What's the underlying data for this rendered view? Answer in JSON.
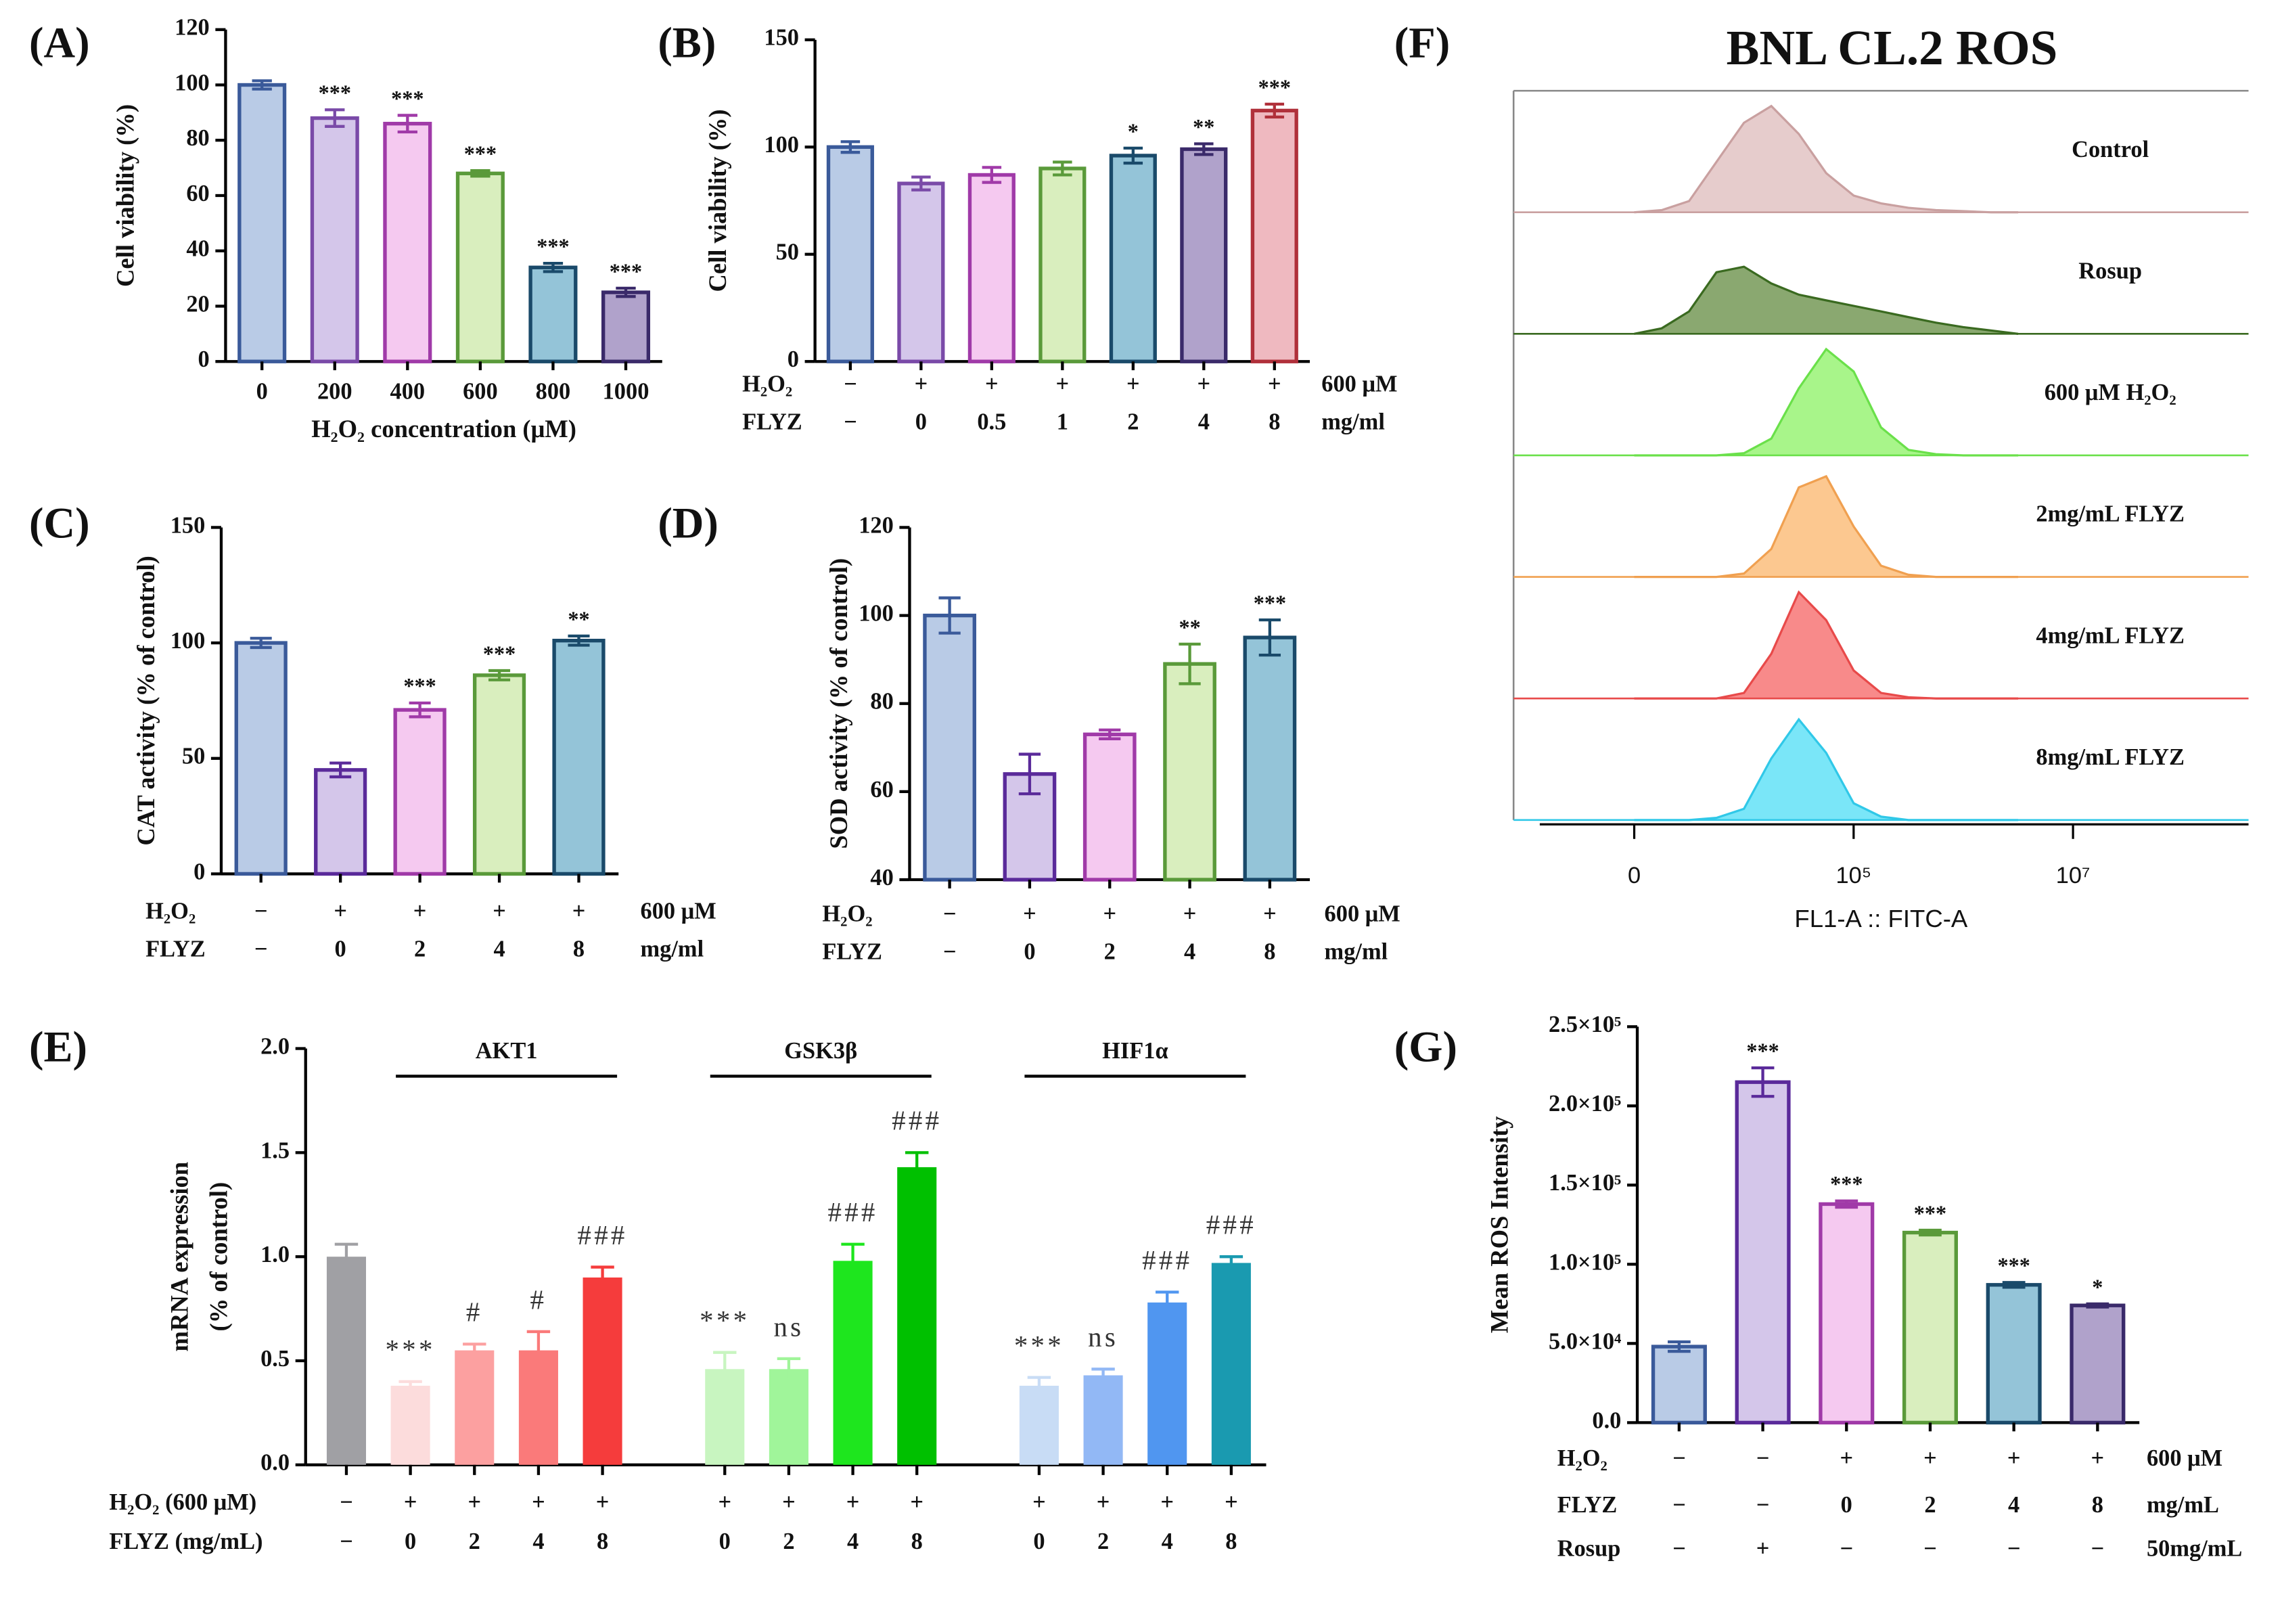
{
  "chart_data": [
    {
      "type": "bar",
      "panel": "(A)",
      "ylabel": "Cell viability (%)",
      "xlabel": "H₂O₂ concentration (μM)",
      "categories": [
        "0",
        "200",
        "400",
        "600",
        "800",
        "1000"
      ],
      "values": [
        100,
        88,
        86,
        68,
        34,
        25
      ],
      "errors": [
        1.5,
        3,
        3,
        1,
        1.5,
        1.5
      ],
      "significance": [
        null,
        "***",
        "***",
        "***",
        "***",
        "***"
      ],
      "colors": [
        "#b9cbe6",
        "#d4c6ea",
        "#f5c9f0",
        "#d9eebe",
        "#94c4d8",
        "#b0a2cb"
      ],
      "edge_colors": [
        "#3a5a9a",
        "#7a4aa8",
        "#a03aa8",
        "#5a9a3a",
        "#1a4a6a",
        "#3a2a6a"
      ],
      "ylim": [
        0,
        120
      ],
      "yticks": [
        0,
        20,
        40,
        60,
        80,
        100,
        120
      ]
    },
    {
      "type": "bar",
      "panel": "(B)",
      "ylabel": "Cell viability (%)",
      "values": [
        100,
        83,
        87,
        90,
        96,
        99,
        117
      ],
      "errors": [
        2.5,
        3,
        3.5,
        3,
        3.5,
        2.5,
        3
      ],
      "significance": [
        null,
        null,
        null,
        null,
        "*",
        "**",
        "***"
      ],
      "colors": [
        "#b9cbe6",
        "#d4c6ea",
        "#f5c9f0",
        "#d9eebe",
        "#94c4d8",
        "#b0a2cb",
        "#efb9c0"
      ],
      "edge_colors": [
        "#3a5a9a",
        "#7a4aa8",
        "#a03aa8",
        "#5a9a3a",
        "#1a4a6a",
        "#3a2a6a",
        "#b0303a"
      ],
      "ylim": [
        0,
        150
      ],
      "yticks": [
        0,
        50,
        100,
        150
      ],
      "conditions": [
        {
          "label": "H₂O₂",
          "values": [
            "−",
            "+",
            "+",
            "+",
            "+",
            "+",
            "+"
          ],
          "unit": "600 μM"
        },
        {
          "label": "FLYZ",
          "values": [
            "−",
            "0",
            "0.5",
            "1",
            "2",
            "4",
            "8"
          ],
          "unit": "mg/ml"
        }
      ]
    },
    {
      "type": "bar",
      "panel": "(C)",
      "ylabel": "CAT activity (% of control)",
      "values": [
        100,
        45,
        71,
        86,
        101
      ],
      "errors": [
        2,
        3,
        3,
        2,
        2
      ],
      "significance": [
        null,
        null,
        "***",
        "***",
        "**"
      ],
      "colors": [
        "#b9cbe6",
        "#d4c6ea",
        "#f5c9f0",
        "#d9eebe",
        "#94c4d8"
      ],
      "edge_colors": [
        "#3a5a9a",
        "#5a2a9a",
        "#a03aa8",
        "#5a9a3a",
        "#1a4a6a"
      ],
      "ylim": [
        0,
        150
      ],
      "yticks": [
        0,
        50,
        100,
        150
      ],
      "conditions": [
        {
          "label": "H₂O₂",
          "values": [
            "−",
            "+",
            "+",
            "+",
            "+"
          ],
          "unit": "600 μM"
        },
        {
          "label": "FLYZ",
          "values": [
            "−",
            "0",
            "2",
            "4",
            "8"
          ],
          "unit": "mg/ml"
        }
      ]
    },
    {
      "type": "bar",
      "panel": "(D)",
      "ylabel": "SOD activity (% of control)",
      "values": [
        100,
        64,
        73,
        89,
        95
      ],
      "errors": [
        4,
        4.5,
        1,
        4.5,
        4
      ],
      "significance": [
        null,
        null,
        null,
        "**",
        "***"
      ],
      "colors": [
        "#b9cbe6",
        "#d4c6ea",
        "#f5c9f0",
        "#d9eebe",
        "#94c4d8"
      ],
      "edge_colors": [
        "#3a5a9a",
        "#5a2a9a",
        "#a03aa8",
        "#5a9a3a",
        "#1a4a6a"
      ],
      "ylim": [
        40,
        120
      ],
      "yticks": [
        40,
        60,
        80,
        100,
        120
      ],
      "conditions": [
        {
          "label": "H₂O₂",
          "values": [
            "−",
            "+",
            "+",
            "+",
            "+"
          ],
          "unit": "600 μM"
        },
        {
          "label": "FLYZ",
          "values": [
            "−",
            "0",
            "2",
            "4",
            "8"
          ],
          "unit": "mg/ml"
        }
      ]
    },
    {
      "type": "grouped_bar",
      "panel": "(E)",
      "ylabel": [
        "mRNA expression",
        "(% of control)"
      ],
      "groups": [
        {
          "values": [
            1.0
          ],
          "errors": [
            0.06
          ],
          "colors": [
            "#a0a0a4"
          ]
        },
        {
          "name": "AKT1",
          "values": [
            0.38,
            0.55,
            0.55,
            0.9
          ],
          "errors": [
            0.02,
            0.03,
            0.09,
            0.05
          ],
          "significance": [
            "***",
            "#",
            "#",
            "###"
          ],
          "colors": [
            "#fcdcdc",
            "#fca0a0",
            "#fa7a7a",
            "#f53c3c"
          ]
        },
        {
          "name": "GSK3β",
          "values": [
            0.46,
            0.46,
            0.98,
            1.43
          ],
          "errors": [
            0.08,
            0.05,
            0.08,
            0.07
          ],
          "significance": [
            "***",
            "ns",
            "###",
            "###"
          ],
          "colors": [
            "#c8f5c0",
            "#a0f59a",
            "#1ee61e",
            "#00c000"
          ]
        },
        {
          "name": "HIF1α",
          "values": [
            0.38,
            0.43,
            0.78,
            0.97
          ],
          "errors": [
            0.04,
            0.03,
            0.05,
            0.03
          ],
          "significance": [
            "***",
            "ns",
            "###",
            "###"
          ],
          "colors": [
            "#c8dcf5",
            "#92b8f5",
            "#5096f0",
            "#1a9ab0"
          ]
        }
      ],
      "ylim": [
        0,
        2
      ],
      "yticks": [
        {
          "value": 0,
          "label": "0.0"
        },
        {
          "value": 0.5,
          "label": "0.5"
        },
        {
          "value": 1,
          "label": "1.0"
        },
        {
          "value": 1.5,
          "label": "1.5"
        },
        {
          "value": 2,
          "label": "2.0"
        }
      ],
      "conditions": [
        {
          "label": "H₂O₂ (600 μM)",
          "values": [
            "−",
            "+",
            "+",
            "+",
            "+",
            "+",
            "+",
            "+",
            "+",
            "+",
            "+",
            "+",
            "+"
          ]
        },
        {
          "label": "FLYZ (mg/mL)",
          "values": [
            "−",
            "0",
            "2",
            "4",
            "8",
            "0",
            "2",
            "4",
            "8",
            "0",
            "2",
            "4",
            "8"
          ]
        }
      ]
    },
    {
      "type": "ridgeline",
      "panel": "(F)",
      "title": "BNL CL.2 ROS",
      "xlabel": "FL1-A :: FITC-A",
      "x": [
        3.0,
        3.25,
        3.5,
        3.75,
        4.0,
        4.25,
        4.5,
        4.75,
        5.0,
        5.25,
        5.5,
        5.75,
        6.0,
        6.25,
        6.5
      ],
      "xlim": [
        1.9,
        8.6
      ],
      "xticks": [
        {
          "value": 3,
          "label": "0"
        },
        {
          "value": 5,
          "label": "10⁵"
        },
        {
          "value": 7,
          "label": "10⁷"
        }
      ],
      "ylim": [
        0,
        100
      ],
      "series": [
        {
          "name": "Control",
          "color": "#e6cccc",
          "edge_color": "#c9a0a0",
          "values": [
            0,
            2,
            10,
            45,
            80,
            95,
            70,
            35,
            15,
            8,
            4,
            2,
            1,
            0,
            0
          ]
        },
        {
          "name": "Rosup",
          "color": "#8aa870",
          "edge_color": "#3a6a20",
          "values": [
            0,
            5,
            20,
            55,
            60,
            45,
            35,
            30,
            25,
            20,
            15,
            10,
            6,
            3,
            0
          ]
        },
        {
          "name": "600 μM H₂O₂",
          "color": "#a8f58a",
          "edge_color": "#6ae04a",
          "values": [
            0,
            0,
            0,
            0,
            2,
            15,
            60,
            95,
            75,
            25,
            5,
            1,
            0,
            0,
            0
          ]
        },
        {
          "name": "2mg/mL FLYZ",
          "color": "#fcc890",
          "edge_color": "#f0a050",
          "values": [
            0,
            0,
            0,
            0,
            3,
            25,
            80,
            90,
            45,
            10,
            2,
            0,
            0,
            0,
            0
          ]
        },
        {
          "name": "4mg/mL FLYZ",
          "color": "#f88a8a",
          "edge_color": "#e84a4a",
          "values": [
            0,
            0,
            0,
            0,
            5,
            40,
            95,
            70,
            25,
            5,
            1,
            0,
            0,
            0,
            0
          ]
        },
        {
          "name": "8mg/mL FLYZ",
          "color": "#7ae6f8",
          "edge_color": "#30c8e8",
          "values": [
            0,
            0,
            0,
            2,
            10,
            55,
            90,
            60,
            15,
            3,
            0,
            0,
            0,
            0,
            0
          ]
        }
      ]
    },
    {
      "type": "bar",
      "panel": "(G)",
      "ylabel": "Mean ROS Intensity",
      "values": [
        48000,
        215000,
        138000,
        120000,
        87000,
        74000
      ],
      "errors": [
        3000,
        9000,
        2000,
        1500,
        1500,
        1000
      ],
      "significance": [
        null,
        "***",
        "***",
        "***",
        "***",
        "*"
      ],
      "colors": [
        "#b9cbe6",
        "#d4c6ea",
        "#f5c9f0",
        "#d9eebe",
        "#94c4d8",
        "#b0a2cb"
      ],
      "edge_colors": [
        "#3a5a9a",
        "#5a2a9a",
        "#a03aa8",
        "#5a9a3a",
        "#1a4a6a",
        "#3a2a6a"
      ],
      "ylim": [
        0,
        250000
      ],
      "yticks": [
        {
          "value": 0,
          "label": "0.0"
        },
        {
          "value": 50000,
          "label": "5.0×10⁴"
        },
        {
          "value": 100000,
          "label": "1.0×10⁵"
        },
        {
          "value": 150000,
          "label": "1.5×10⁵"
        },
        {
          "value": 200000,
          "label": "2.0×10⁵"
        },
        {
          "value": 250000,
          "label": "2.5×10⁵"
        }
      ],
      "conditions": [
        {
          "label": "H₂O₂",
          "values": [
            "−",
            "−",
            "+",
            "+",
            "+",
            "+"
          ],
          "unit": "600 μM"
        },
        {
          "label": "FLYZ",
          "values": [
            "−",
            "−",
            "0",
            "2",
            "4",
            "8"
          ],
          "unit": "mg/mL"
        },
        {
          "label": "Rosup",
          "values": [
            "−",
            "+",
            "−",
            "−",
            "−",
            "−"
          ],
          "unit": "50mg/mL"
        }
      ]
    }
  ]
}
